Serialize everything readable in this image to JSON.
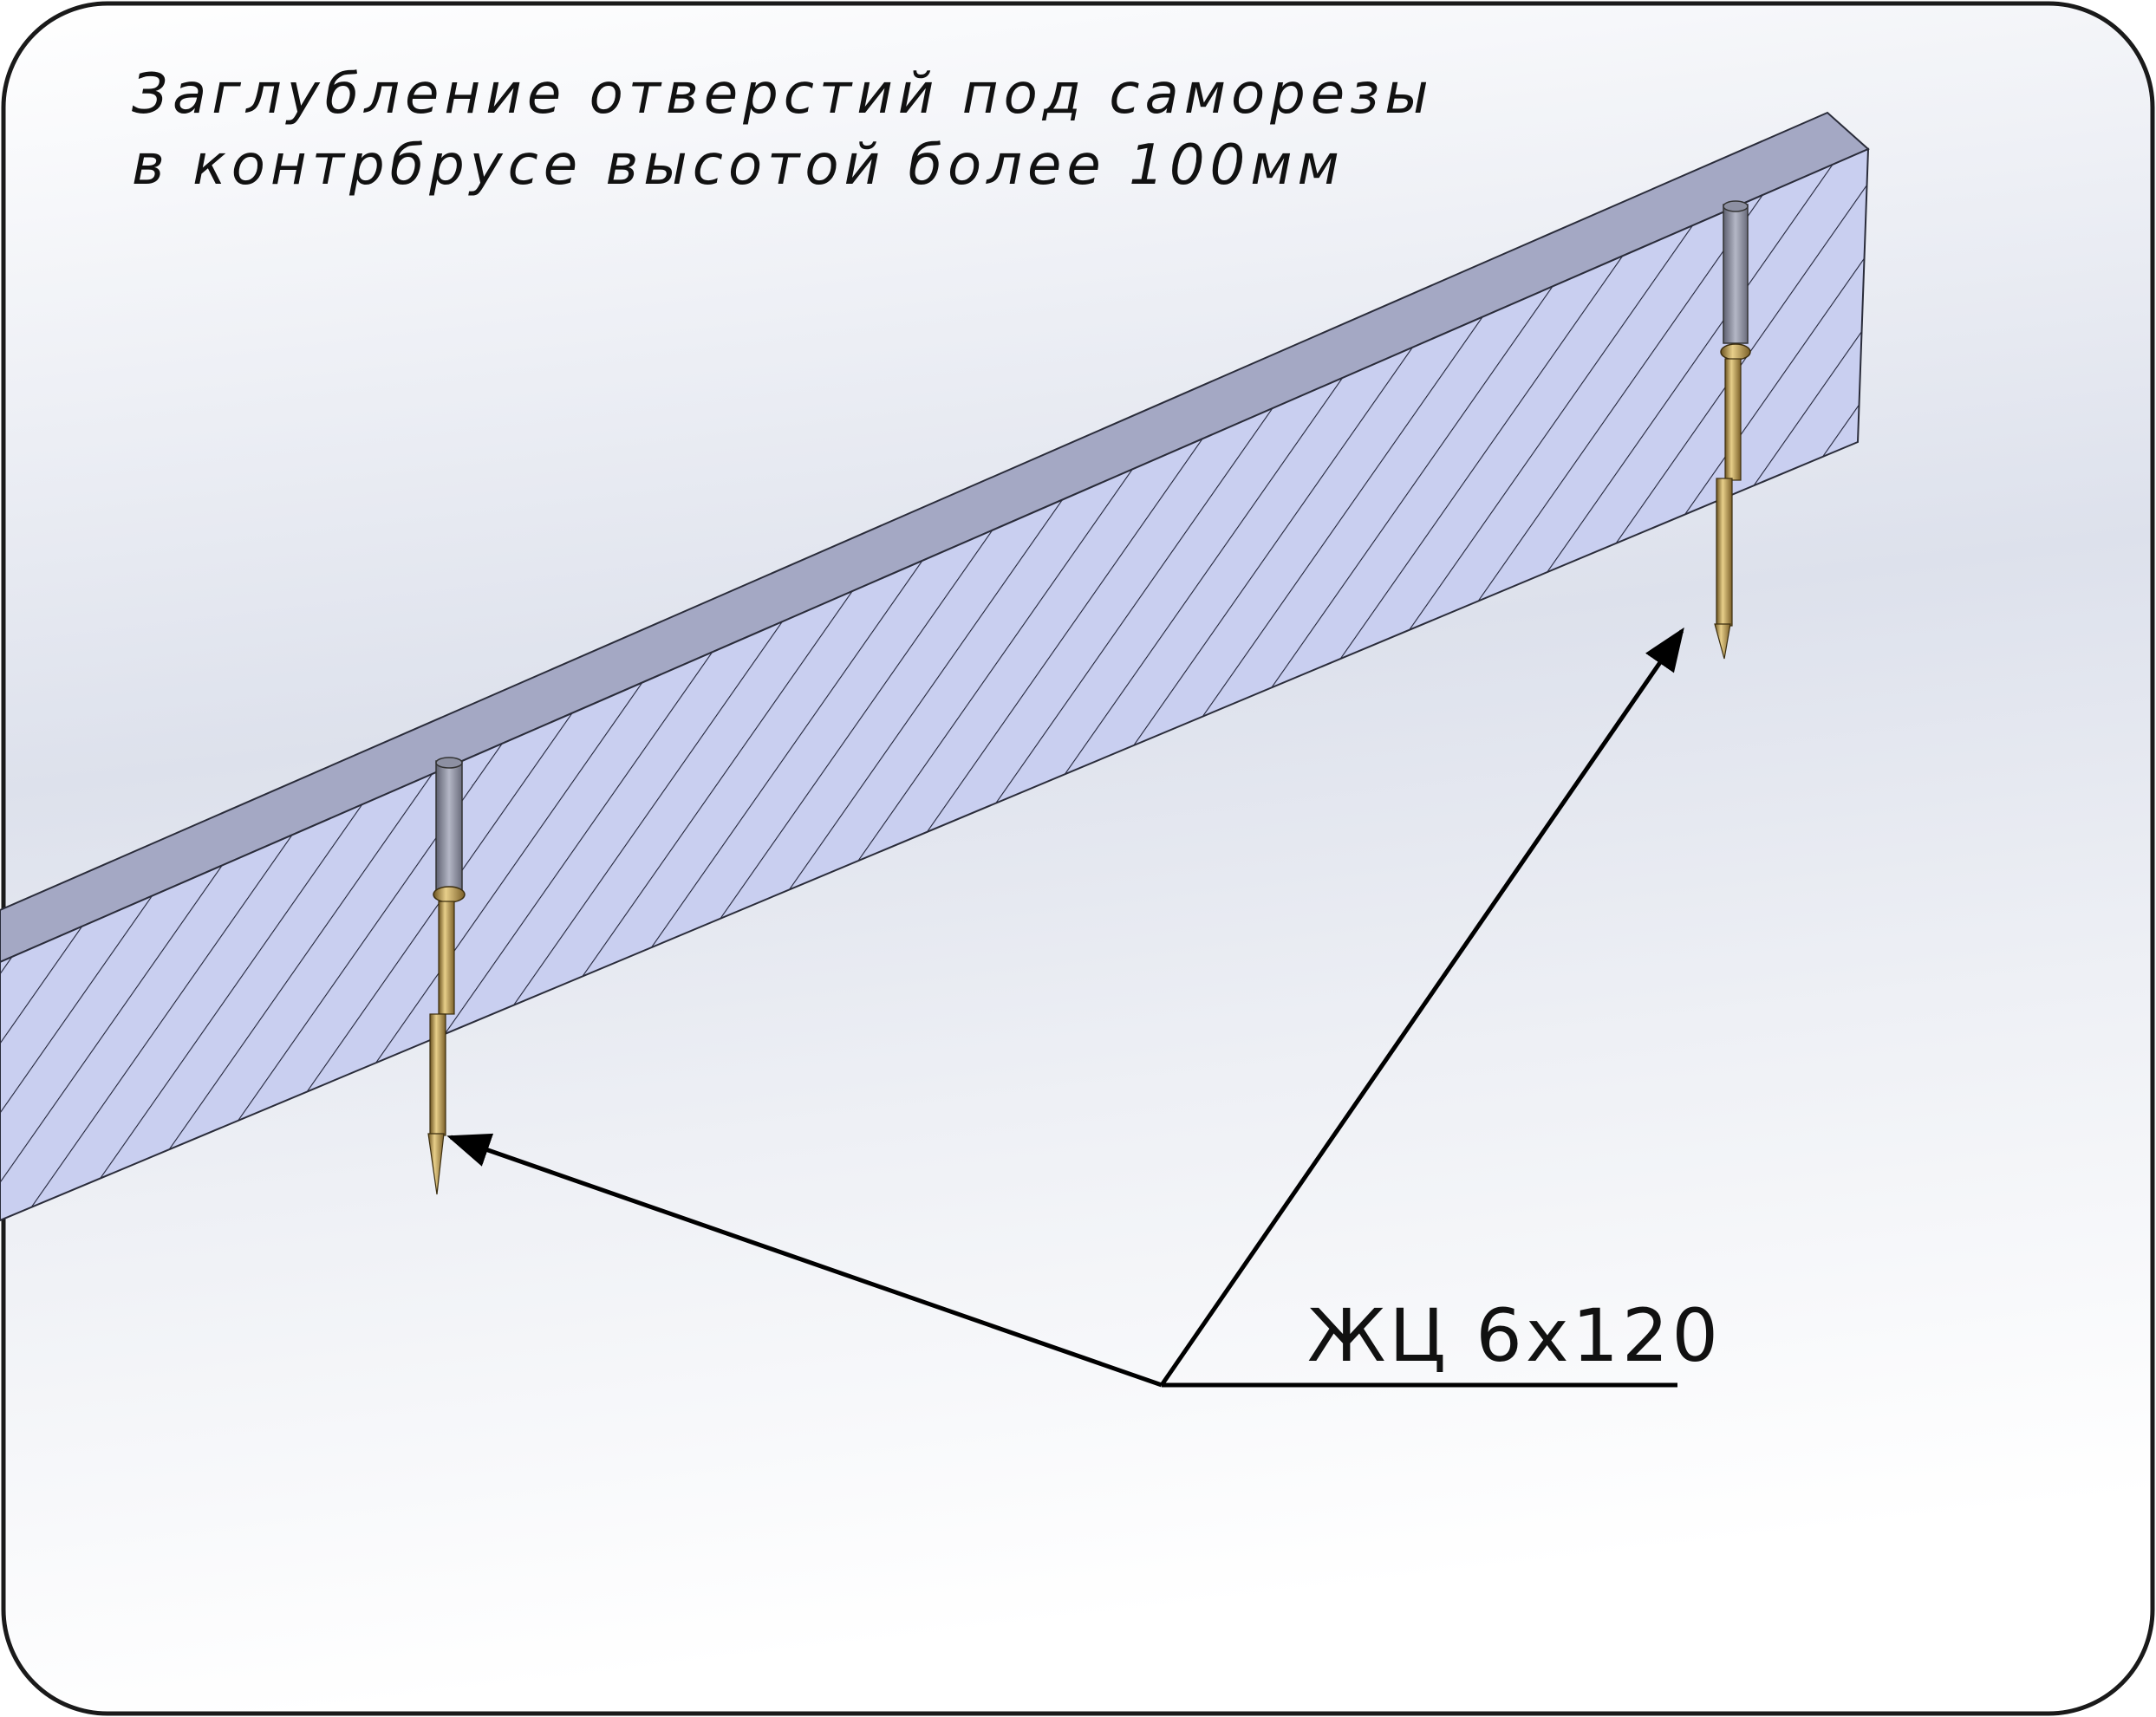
{
  "title": {
    "line1": "Заглубление отверстий под саморезы",
    "line2": "в контрбрусе высотой более 100мм"
  },
  "callout": {
    "label": "ЖЦ 6x120"
  },
  "colors": {
    "beam_front": "#c9cff0",
    "beam_top": "#a4a8c4",
    "hatch": "#22243a",
    "screw_brass": "#b89a55",
    "background_top": "#ffffff",
    "background_bottom": "#d6dbe8"
  }
}
